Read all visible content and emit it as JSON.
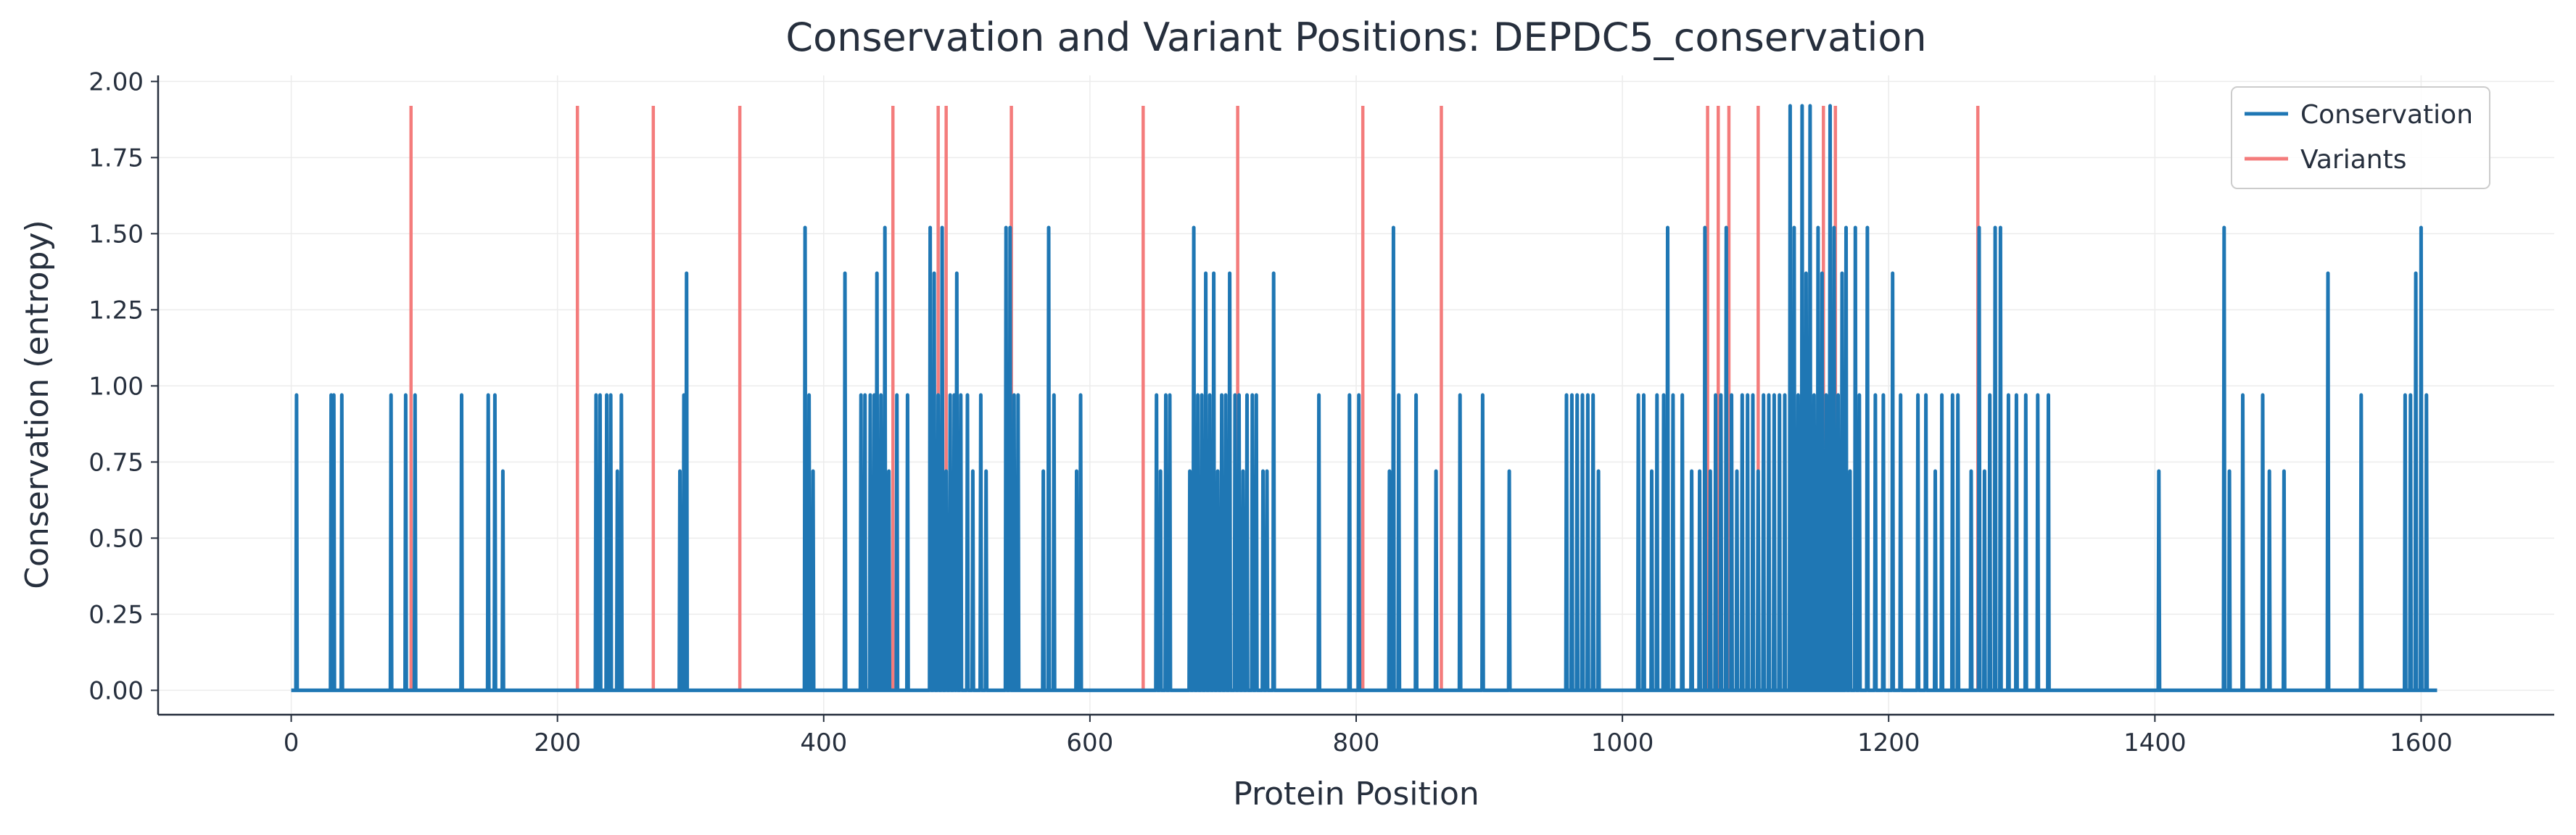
{
  "chart_data": {
    "type": "line",
    "title": "Conservation and Variant Positions: DEPDC5_conservation",
    "xlabel": "Protein Position",
    "ylabel": "Conservation (entropy)",
    "xlim": [
      -100,
      1700
    ],
    "ylim": [
      -0.08,
      2.02
    ],
    "xticks": [
      0,
      200,
      400,
      600,
      800,
      1000,
      1200,
      1400,
      1600
    ],
    "yticks": [
      0.0,
      0.25,
      0.5,
      0.75,
      1.0,
      1.25,
      1.5,
      1.75,
      2.0
    ],
    "xtick_labels": [
      "0",
      "200",
      "400",
      "600",
      "800",
      "1000",
      "1200",
      "1400",
      "1600"
    ],
    "ytick_labels": [
      "0.00",
      "0.25",
      "0.50",
      "0.75",
      "1.00",
      "1.25",
      "1.50",
      "1.75",
      "2.00"
    ],
    "grid": true,
    "legend_position": "top-right",
    "colors": {
      "conservation": "#1f77b4",
      "variants": "#f47c7c",
      "text": "#262f3d",
      "grid": "#ececec"
    },
    "series": [
      {
        "name": "Conservation",
        "type": "spikes",
        "length": 1612,
        "baseline": 0,
        "spikes": [
          [
            4,
            0.97
          ],
          [
            30,
            0.97
          ],
          [
            32,
            0.97
          ],
          [
            38,
            0.97
          ],
          [
            75,
            0.97
          ],
          [
            86,
            0.97
          ],
          [
            93,
            0.97
          ],
          [
            128,
            0.97
          ],
          [
            148,
            0.97
          ],
          [
            153,
            0.97
          ],
          [
            159,
            0.72
          ],
          [
            229,
            0.97
          ],
          [
            232,
            0.97
          ],
          [
            237,
            0.97
          ],
          [
            240,
            0.97
          ],
          [
            245,
            0.72
          ],
          [
            248,
            0.97
          ],
          [
            292,
            0.72
          ],
          [
            295,
            0.97
          ],
          [
            297,
            1.37
          ],
          [
            386,
            1.52
          ],
          [
            389,
            0.97
          ],
          [
            392,
            0.72
          ],
          [
            416,
            1.37
          ],
          [
            428,
            0.97
          ],
          [
            431,
            0.97
          ],
          [
            435,
            0.97
          ],
          [
            438,
            0.97
          ],
          [
            440,
            1.37
          ],
          [
            443,
            0.97
          ],
          [
            446,
            1.52
          ],
          [
            449,
            0.72
          ],
          [
            455,
            0.97
          ],
          [
            463,
            0.97
          ],
          [
            480,
            1.52
          ],
          [
            483,
            1.37
          ],
          [
            486,
            0.97
          ],
          [
            489,
            1.52
          ],
          [
            492,
            0.72
          ],
          [
            495,
            0.97
          ],
          [
            498,
            0.97
          ],
          [
            500,
            1.37
          ],
          [
            503,
            0.97
          ],
          [
            508,
            0.97
          ],
          [
            512,
            0.72
          ],
          [
            518,
            0.97
          ],
          [
            522,
            0.72
          ],
          [
            537,
            1.52
          ],
          [
            540,
            1.52
          ],
          [
            543,
            0.97
          ],
          [
            546,
            0.97
          ],
          [
            565,
            0.72
          ],
          [
            569,
            1.52
          ],
          [
            573,
            0.97
          ],
          [
            590,
            0.72
          ],
          [
            593,
            0.97
          ],
          [
            650,
            0.97
          ],
          [
            653,
            0.72
          ],
          [
            657,
            0.97
          ],
          [
            660,
            0.97
          ],
          [
            675,
            0.72
          ],
          [
            678,
            1.52
          ],
          [
            681,
            0.97
          ],
          [
            684,
            0.97
          ],
          [
            687,
            1.37
          ],
          [
            690,
            0.97
          ],
          [
            693,
            1.37
          ],
          [
            696,
            0.72
          ],
          [
            699,
            0.97
          ],
          [
            702,
            0.97
          ],
          [
            705,
            1.37
          ],
          [
            709,
            0.97
          ],
          [
            712,
            0.97
          ],
          [
            715,
            0.72
          ],
          [
            718,
            0.97
          ],
          [
            722,
            0.97
          ],
          [
            725,
            0.97
          ],
          [
            730,
            0.72
          ],
          [
            733,
            0.72
          ],
          [
            738,
            1.37
          ],
          [
            772,
            0.97
          ],
          [
            795,
            0.97
          ],
          [
            802,
            0.97
          ],
          [
            825,
            0.72
          ],
          [
            828,
            1.52
          ],
          [
            832,
            0.97
          ],
          [
            845,
            0.97
          ],
          [
            860,
            0.72
          ],
          [
            878,
            0.97
          ],
          [
            895,
            0.97
          ],
          [
            915,
            0.72
          ],
          [
            958,
            0.97
          ],
          [
            962,
            0.97
          ],
          [
            966,
            0.97
          ],
          [
            970,
            0.97
          ],
          [
            974,
            0.97
          ],
          [
            978,
            0.97
          ],
          [
            982,
            0.72
          ],
          [
            1012,
            0.97
          ],
          [
            1016,
            0.97
          ],
          [
            1022,
            0.72
          ],
          [
            1026,
            0.97
          ],
          [
            1031,
            0.97
          ],
          [
            1034,
            1.52
          ],
          [
            1038,
            0.97
          ],
          [
            1045,
            0.97
          ],
          [
            1052,
            0.72
          ],
          [
            1058,
            0.72
          ],
          [
            1062,
            1.52
          ],
          [
            1066,
            0.72
          ],
          [
            1070,
            0.97
          ],
          [
            1074,
            0.97
          ],
          [
            1078,
            1.52
          ],
          [
            1082,
            0.97
          ],
          [
            1086,
            0.72
          ],
          [
            1090,
            0.97
          ],
          [
            1094,
            0.97
          ],
          [
            1098,
            0.97
          ],
          [
            1102,
            0.72
          ],
          [
            1106,
            0.97
          ],
          [
            1110,
            0.97
          ],
          [
            1114,
            0.97
          ],
          [
            1118,
            0.97
          ],
          [
            1122,
            0.97
          ],
          [
            1126,
            1.92
          ],
          [
            1129,
            1.52
          ],
          [
            1132,
            0.97
          ],
          [
            1135,
            1.92
          ],
          [
            1138,
            1.37
          ],
          [
            1141,
            1.92
          ],
          [
            1144,
            0.97
          ],
          [
            1147,
            1.52
          ],
          [
            1150,
            1.37
          ],
          [
            1153,
            0.97
          ],
          [
            1156,
            1.92
          ],
          [
            1159,
            1.52
          ],
          [
            1162,
            0.97
          ],
          [
            1165,
            1.37
          ],
          [
            1168,
            1.52
          ],
          [
            1171,
            0.72
          ],
          [
            1175,
            1.52
          ],
          [
            1178,
            0.97
          ],
          [
            1184,
            1.52
          ],
          [
            1190,
            0.97
          ],
          [
            1196,
            0.97
          ],
          [
            1203,
            1.37
          ],
          [
            1209,
            0.97
          ],
          [
            1222,
            0.97
          ],
          [
            1228,
            0.97
          ],
          [
            1235,
            0.72
          ],
          [
            1240,
            0.97
          ],
          [
            1248,
            0.97
          ],
          [
            1252,
            0.97
          ],
          [
            1262,
            0.72
          ],
          [
            1268,
            1.52
          ],
          [
            1272,
            0.72
          ],
          [
            1276,
            0.97
          ],
          [
            1280,
            1.52
          ],
          [
            1284,
            1.52
          ],
          [
            1290,
            0.97
          ],
          [
            1296,
            0.97
          ],
          [
            1303,
            0.97
          ],
          [
            1312,
            0.97
          ],
          [
            1320,
            0.97
          ],
          [
            1403,
            0.72
          ],
          [
            1452,
            1.52
          ],
          [
            1456,
            0.72
          ],
          [
            1466,
            0.97
          ],
          [
            1481,
            0.97
          ],
          [
            1486,
            0.72
          ],
          [
            1497,
            0.72
          ],
          [
            1530,
            1.37
          ],
          [
            1555,
            0.97
          ],
          [
            1588,
            0.97
          ],
          [
            1592,
            0.97
          ],
          [
            1596,
            1.37
          ],
          [
            1600,
            1.52
          ],
          [
            1604,
            0.97
          ]
        ]
      },
      {
        "name": "Variants",
        "type": "vlines",
        "positions": [
          90,
          215,
          272,
          337,
          452,
          486,
          492,
          541,
          640,
          711,
          805,
          864,
          1064,
          1072,
          1080,
          1102,
          1151,
          1160,
          1267
        ],
        "ymin": 0,
        "ymax": 1.92
      }
    ]
  }
}
